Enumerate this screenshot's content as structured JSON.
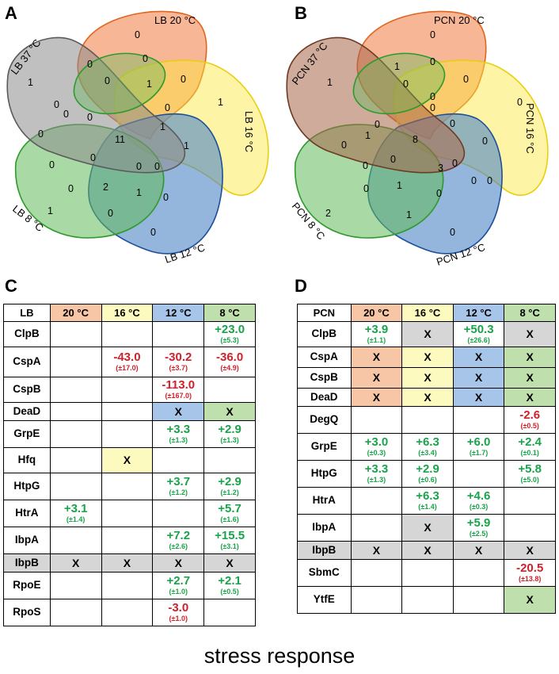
{
  "panels": {
    "A": {
      "letter": "A",
      "sets": [
        "LB 20 °C",
        "LB 16 °C",
        "LB 12 °C",
        "LB 8 °C",
        "LB 37 °C"
      ],
      "counts": {
        "only_20": "0",
        "only_16": "1",
        "only_12": "0",
        "only_8": "1",
        "only_37": "1",
        "core": "11",
        "r1": "0",
        "r2": "0",
        "r3": "0",
        "r4": "0",
        "r5": "1",
        "r6": "1",
        "r7": "0",
        "r8": "0",
        "r9": "1",
        "r10": "0",
        "r11": "0",
        "r12": "2",
        "r13": "0",
        "r14": "0",
        "r15": "0",
        "r16": "0",
        "r17": "0",
        "r18": "1",
        "r19": "0",
        "r20": "0",
        "r21": "0"
      }
    },
    "B": {
      "letter": "B",
      "sets": [
        "PCN 20 °C",
        "PCN 16 °C",
        "PCN 12 °C",
        "PCN 8 °C",
        "PCN 37 °C"
      ],
      "counts": {
        "only_20": "0",
        "only_16": "0",
        "only_12": "0",
        "only_8": "2",
        "only_37": "1",
        "core": "8",
        "r1": "1",
        "r2": "0",
        "r3": "0",
        "r4": "0",
        "r5": "0",
        "r6": "0",
        "r7": "0",
        "r8": "0",
        "r9": "1",
        "r10": "0",
        "r11": "0",
        "r12": "0",
        "r13": "3",
        "r14": "0",
        "r15": "0",
        "r16": "1",
        "r17": "0",
        "r18": "0",
        "r19": "1",
        "r20": "0",
        "r21": "0"
      }
    },
    "C": {
      "letter": "C",
      "corner": "LB",
      "headers": [
        "20 °C",
        "16 °C",
        "12 °C",
        "8 °C"
      ],
      "rows": [
        {
          "gene": "ClpB",
          "cells": [
            {
              "t": ""
            },
            {
              "t": ""
            },
            {
              "t": ""
            },
            {
              "t": "val",
              "v": "+23.0",
              "e": "(±5.3)",
              "s": "pos"
            }
          ]
        },
        {
          "gene": "CspA",
          "cells": [
            {
              "t": ""
            },
            {
              "t": "val",
              "v": "-43.0",
              "e": "(±17.0)",
              "s": "neg"
            },
            {
              "t": "val",
              "v": "-30.2",
              "e": "(±3.7)",
              "s": "neg"
            },
            {
              "t": "val",
              "v": "-36.0",
              "e": "(±4.9)",
              "s": "neg"
            }
          ]
        },
        {
          "gene": "CspB",
          "cells": [
            {
              "t": ""
            },
            {
              "t": ""
            },
            {
              "t": "val",
              "v": "-113.0",
              "e": "(±167.0)",
              "s": "neg"
            },
            {
              "t": ""
            }
          ]
        },
        {
          "gene": "DeaD",
          "cells": [
            {
              "t": ""
            },
            {
              "t": ""
            },
            {
              "t": "x",
              "c": "c12"
            },
            {
              "t": "x",
              "c": "c8"
            }
          ]
        },
        {
          "gene": "GrpE",
          "cells": [
            {
              "t": ""
            },
            {
              "t": ""
            },
            {
              "t": "val",
              "v": "+3.3",
              "e": "(±1.3)",
              "s": "pos"
            },
            {
              "t": "val",
              "v": "+2.9",
              "e": "(±1.3)",
              "s": "pos"
            }
          ]
        },
        {
          "gene": "Hfq",
          "cells": [
            {
              "t": ""
            },
            {
              "t": "x",
              "c": "c16"
            },
            {
              "t": ""
            },
            {
              "t": ""
            }
          ]
        },
        {
          "gene": "HtpG",
          "cells": [
            {
              "t": ""
            },
            {
              "t": ""
            },
            {
              "t": "val",
              "v": "+3.7",
              "e": "(±1.2)",
              "s": "pos"
            },
            {
              "t": "val",
              "v": "+2.9",
              "e": "(±1.2)",
              "s": "pos"
            }
          ]
        },
        {
          "gene": "HtrA",
          "cells": [
            {
              "t": "val",
              "v": "+3.1",
              "e": "(±1.4)",
              "s": "pos"
            },
            {
              "t": ""
            },
            {
              "t": ""
            },
            {
              "t": "val",
              "v": "+5.7",
              "e": "(±1.6)",
              "s": "pos"
            }
          ]
        },
        {
          "gene": "IbpA",
          "cells": [
            {
              "t": ""
            },
            {
              "t": ""
            },
            {
              "t": "val",
              "v": "+7.2",
              "e": "(±2.6)",
              "s": "pos"
            },
            {
              "t": "val",
              "v": "+15.5",
              "e": "(±3.1)",
              "s": "pos"
            }
          ]
        },
        {
          "gene": "IbpB",
          "cells": [
            {
              "t": "x",
              "c": "cg"
            },
            {
              "t": "x",
              "c": "cg"
            },
            {
              "t": "x",
              "c": "cg"
            },
            {
              "t": "x",
              "c": "cg"
            }
          ],
          "rowclass": "cg"
        },
        {
          "gene": "RpoE",
          "cells": [
            {
              "t": ""
            },
            {
              "t": ""
            },
            {
              "t": "val",
              "v": "+2.7",
              "e": "(±1.0)",
              "s": "pos"
            },
            {
              "t": "val",
              "v": "+2.1",
              "e": "(±0.5)",
              "s": "pos"
            }
          ]
        },
        {
          "gene": "RpoS",
          "cells": [
            {
              "t": ""
            },
            {
              "t": ""
            },
            {
              "t": "val",
              "v": "-3.0",
              "e": "(±1.0)",
              "s": "neg"
            },
            {
              "t": ""
            }
          ]
        }
      ]
    },
    "D": {
      "letter": "D",
      "corner": "PCN",
      "headers": [
        "20 °C",
        "16 °C",
        "12 °C",
        "8 °C"
      ],
      "rows": [
        {
          "gene": "ClpB",
          "cells": [
            {
              "t": "val",
              "v": "+3.9",
              "e": "(±1.1)",
              "s": "pos"
            },
            {
              "t": "x",
              "c": "cg"
            },
            {
              "t": "val",
              "v": "+50.3",
              "e": "(±26.6)",
              "s": "pos"
            },
            {
              "t": "x",
              "c": "cg"
            }
          ]
        },
        {
          "gene": "CspA",
          "cells": [
            {
              "t": "x",
              "c": "c20"
            },
            {
              "t": "x",
              "c": "c16"
            },
            {
              "t": "x",
              "c": "c12"
            },
            {
              "t": "x",
              "c": "c8"
            }
          ]
        },
        {
          "gene": "CspB",
          "cells": [
            {
              "t": "x",
              "c": "c20"
            },
            {
              "t": "x",
              "c": "c16"
            },
            {
              "t": "x",
              "c": "c12"
            },
            {
              "t": "x",
              "c": "c8"
            }
          ]
        },
        {
          "gene": "DeaD",
          "cells": [
            {
              "t": "x",
              "c": "c20"
            },
            {
              "t": "x",
              "c": "c16"
            },
            {
              "t": "x",
              "c": "c12"
            },
            {
              "t": "x",
              "c": "c8"
            }
          ]
        },
        {
          "gene": "DegQ",
          "cells": [
            {
              "t": ""
            },
            {
              "t": ""
            },
            {
              "t": ""
            },
            {
              "t": "val",
              "v": "-2.6",
              "e": "(±0.5)",
              "s": "neg"
            }
          ]
        },
        {
          "gene": "GrpE",
          "cells": [
            {
              "t": "val",
              "v": "+3.0",
              "e": "(±0.3)",
              "s": "pos"
            },
            {
              "t": "val",
              "v": "+6.3",
              "e": "(±3.4)",
              "s": "pos"
            },
            {
              "t": "val",
              "v": "+6.0",
              "e": "(±1.7)",
              "s": "pos"
            },
            {
              "t": "val",
              "v": "+2.4",
              "e": "(±0.1)",
              "s": "pos"
            }
          ]
        },
        {
          "gene": "HtpG",
          "cells": [
            {
              "t": "val",
              "v": "+3.3",
              "e": "(±1.3)",
              "s": "pos"
            },
            {
              "t": "val",
              "v": "+2.9",
              "e": "(±0.6)",
              "s": "pos"
            },
            {
              "t": ""
            },
            {
              "t": "val",
              "v": "+5.8",
              "e": "(±5.0)",
              "s": "pos"
            }
          ]
        },
        {
          "gene": "HtrA",
          "cells": [
            {
              "t": ""
            },
            {
              "t": "val",
              "v": "+6.3",
              "e": "(±1.4)",
              "s": "pos"
            },
            {
              "t": "val",
              "v": "+4.6",
              "e": "(±0.3)",
              "s": "pos"
            },
            {
              "t": ""
            }
          ]
        },
        {
          "gene": "IbpA",
          "cells": [
            {
              "t": ""
            },
            {
              "t": "x",
              "c": "cg"
            },
            {
              "t": "val",
              "v": "+5.9",
              "e": "(±2.5)",
              "s": "pos"
            },
            {
              "t": ""
            }
          ]
        },
        {
          "gene": "IbpB",
          "cells": [
            {
              "t": "x",
              "c": "cg"
            },
            {
              "t": "x",
              "c": "cg"
            },
            {
              "t": "x",
              "c": "cg"
            },
            {
              "t": "x",
              "c": "cg"
            }
          ],
          "rowclass": "cg"
        },
        {
          "gene": "SbmC",
          "cells": [
            {
              "t": ""
            },
            {
              "t": ""
            },
            {
              "t": ""
            },
            {
              "t": "val",
              "v": "-20.5",
              "e": "(±13.8)",
              "s": "neg"
            }
          ]
        },
        {
          "gene": "YtfE",
          "cells": [
            {
              "t": ""
            },
            {
              "t": ""
            },
            {
              "t": ""
            },
            {
              "t": "x",
              "c": "c8"
            }
          ]
        }
      ]
    }
  },
  "x_mark": "X",
  "caption": "stress response",
  "colors": {
    "set_20": "#f07a3e",
    "set_16": "#fde73a",
    "set_12": "#4c86c6",
    "set_8": "#62b95a",
    "set_37": "#8c8c8c",
    "pcn_37": "#a8664a"
  }
}
